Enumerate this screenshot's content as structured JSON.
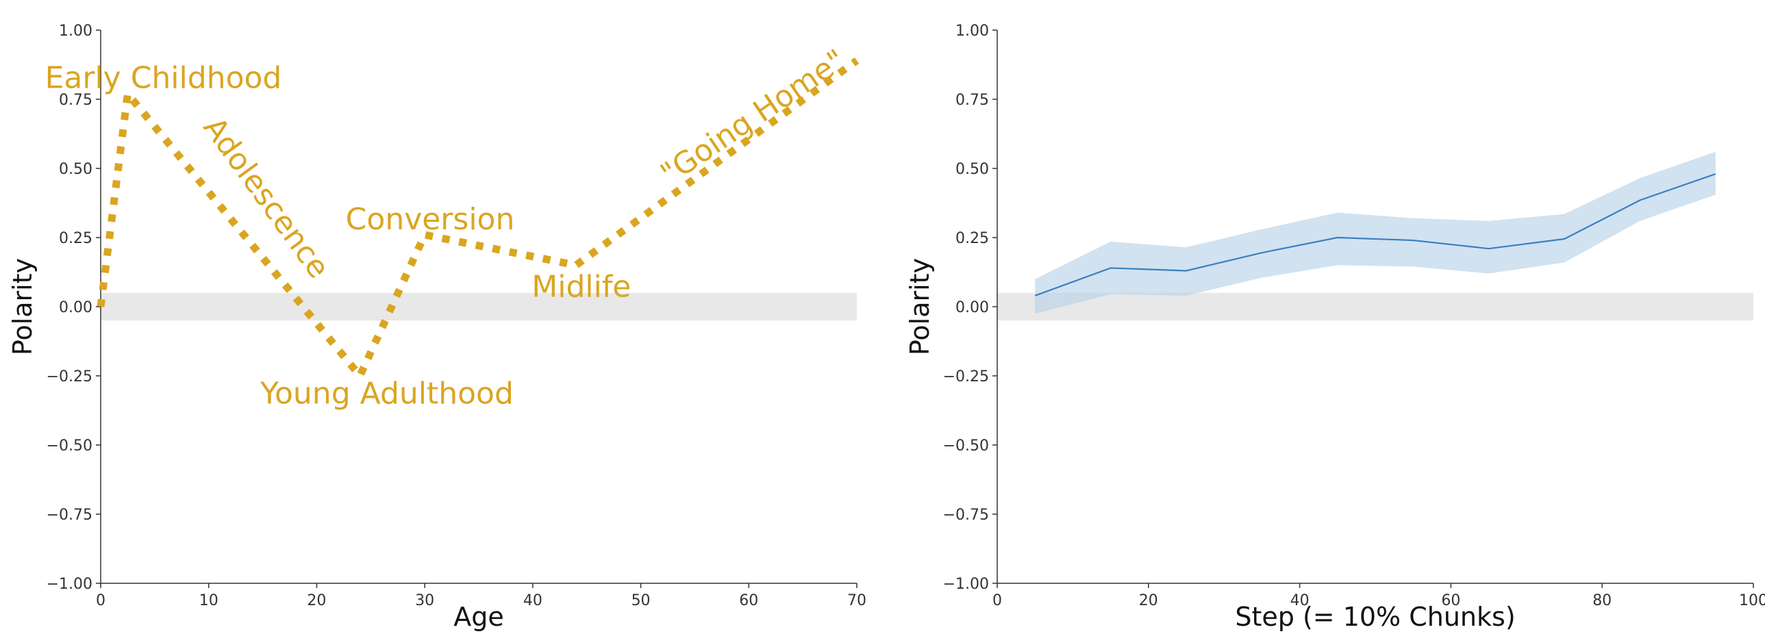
{
  "chart_data": [
    {
      "type": "line",
      "xlabel": "Age",
      "ylabel": "Polarity",
      "xlim": [
        0,
        70
      ],
      "ylim": [
        -1.0,
        1.0
      ],
      "x_ticks": [
        "0",
        "10",
        "20",
        "30",
        "40",
        "50",
        "60",
        "70"
      ],
      "y_ticks": [
        "−1.00",
        "−0.75",
        "−0.50",
        "−0.25",
        "0.00",
        "0.25",
        "0.50",
        "0.75",
        "1.00"
      ],
      "neutral_band": [
        -0.05,
        0.05
      ],
      "line_style": "dotted",
      "series": [
        {
          "x": [
            0,
            2.5,
            24,
            30,
            44,
            70
          ],
          "y": [
            0.0,
            0.77,
            -0.25,
            0.26,
            0.15,
            0.89
          ]
        }
      ],
      "annotations": [
        {
          "text": "Early Childhood",
          "x": 5.8,
          "y": 0.82
        },
        {
          "text": "Adolescence",
          "x": 15.2,
          "y": 0.39
        },
        {
          "text": "Conversion",
          "x": 30.5,
          "y": 0.31
        },
        {
          "text": "Midlife",
          "x": 44.5,
          "y": 0.065
        },
        {
          "text": "Young Adulthood",
          "x": 26.5,
          "y": -0.32
        },
        {
          "text": "\"Going Home\"",
          "x": 60.5,
          "y": 0.68
        }
      ],
      "colors": {
        "line": "#DAA520",
        "annotation": "#DAA520",
        "band": "#e8e8e8"
      }
    },
    {
      "type": "line",
      "xlabel": "Step (= 10% Chunks)",
      "ylabel": "Polarity",
      "xlim": [
        0,
        100
      ],
      "ylim": [
        -1.0,
        1.0
      ],
      "x_ticks": [
        "0",
        "20",
        "40",
        "60",
        "80",
        "100"
      ],
      "y_ticks": [
        "−1.00",
        "−0.75",
        "−0.50",
        "−0.25",
        "0.00",
        "0.25",
        "0.50",
        "0.75",
        "1.00"
      ],
      "neutral_band": [
        -0.05,
        0.05
      ],
      "series": [
        {
          "x": [
            5,
            15,
            25,
            35,
            45,
            55,
            65,
            75,
            85,
            95
          ],
          "y": [
            0.04,
            0.14,
            0.13,
            0.195,
            0.25,
            0.24,
            0.21,
            0.245,
            0.385,
            0.48
          ],
          "lower": [
            -0.025,
            0.045,
            0.04,
            0.105,
            0.15,
            0.145,
            0.12,
            0.16,
            0.31,
            0.405
          ],
          "upper": [
            0.1,
            0.235,
            0.215,
            0.28,
            0.34,
            0.32,
            0.31,
            0.335,
            0.465,
            0.56
          ]
        }
      ],
      "colors": {
        "line": "#3a7fc1",
        "ci": "#b8d3e8",
        "band": "#e8e8e8"
      }
    }
  ]
}
